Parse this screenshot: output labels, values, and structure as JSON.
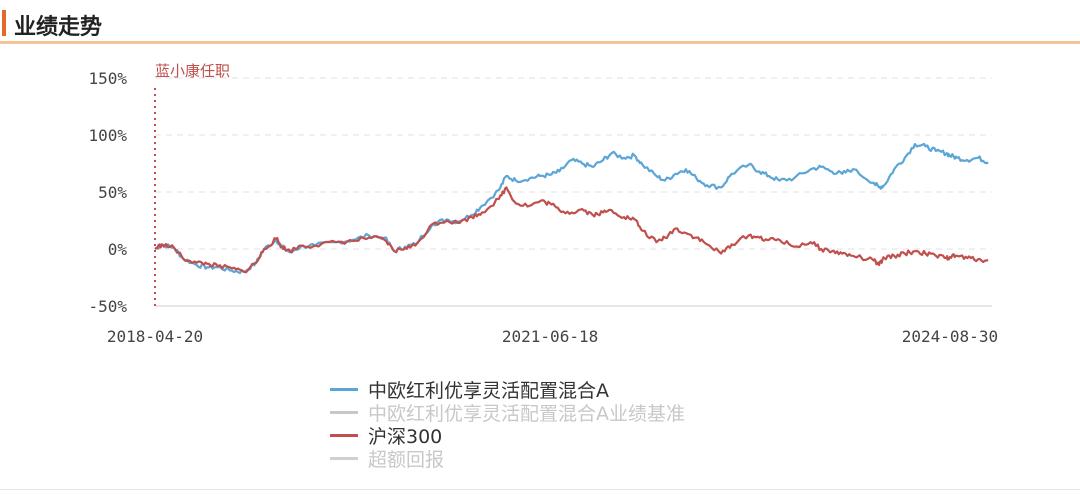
{
  "header": {
    "title": "业绩走势"
  },
  "chart_data": {
    "type": "line",
    "ylim": [
      -50,
      150
    ],
    "y_ticks": [
      "150%",
      "100%",
      "50%",
      "0%",
      "-50%"
    ],
    "y_tick_values": [
      150,
      100,
      50,
      0,
      -50
    ],
    "x_ticks": [
      "2018-04-20",
      "2021-06-18",
      "2024-08-30"
    ],
    "x_tick_dates": [
      "2018-04-20",
      "2021-06-18",
      "2024-08-30"
    ],
    "x_range": [
      "2018-04-20",
      "2024-12-31"
    ],
    "grid": true,
    "annotation": {
      "text": "蓝小康任职",
      "date": "2018-04-20"
    },
    "series": [
      {
        "name": "中欧红利优享灵活配置混合A",
        "color": "#5ba6d6",
        "visible": true,
        "points": [
          [
            "2018-04-20",
            0
          ],
          [
            "2018-05-10",
            4
          ],
          [
            "2018-06-15",
            1
          ],
          [
            "2018-07-10",
            -8
          ],
          [
            "2018-08-20",
            -14
          ],
          [
            "2018-09-20",
            -16
          ],
          [
            "2018-10-20",
            -16
          ],
          [
            "2018-12-01",
            -19
          ],
          [
            "2019-01-05",
            -20
          ],
          [
            "2019-02-10",
            -12
          ],
          [
            "2019-03-05",
            0
          ],
          [
            "2019-04-10",
            8
          ],
          [
            "2019-04-25",
            2
          ],
          [
            "2019-05-20",
            -3
          ],
          [
            "2019-06-20",
            2
          ],
          [
            "2019-08-01",
            3
          ],
          [
            "2019-10-01",
            6
          ],
          [
            "2019-11-20",
            8
          ],
          [
            "2020-01-05",
            12
          ],
          [
            "2020-02-20",
            10
          ],
          [
            "2020-03-20",
            -2
          ],
          [
            "2020-04-20",
            2
          ],
          [
            "2020-05-20",
            4
          ],
          [
            "2020-07-10",
            22
          ],
          [
            "2020-08-20",
            26
          ],
          [
            "2020-09-20",
            24
          ],
          [
            "2020-11-01",
            30
          ],
          [
            "2020-12-01",
            38
          ],
          [
            "2021-01-20",
            52
          ],
          [
            "2021-02-10",
            64
          ],
          [
            "2021-03-10",
            60
          ],
          [
            "2021-04-20",
            62
          ],
          [
            "2021-05-20",
            64
          ],
          [
            "2021-06-18",
            65
          ],
          [
            "2021-07-15",
            68
          ],
          [
            "2021-08-20",
            78
          ],
          [
            "2021-09-20",
            75
          ],
          [
            "2021-10-20",
            72
          ],
          [
            "2021-11-20",
            78
          ],
          [
            "2021-12-15",
            84
          ],
          [
            "2022-01-20",
            80
          ],
          [
            "2022-02-20",
            82
          ],
          [
            "2022-03-15",
            74
          ],
          [
            "2022-04-25",
            64
          ],
          [
            "2022-05-20",
            60
          ],
          [
            "2022-06-20",
            66
          ],
          [
            "2022-07-20",
            70
          ],
          [
            "2022-08-20",
            62
          ],
          [
            "2022-09-20",
            56
          ],
          [
            "2022-10-31",
            54
          ],
          [
            "2022-12-01",
            66
          ],
          [
            "2023-01-20",
            74
          ],
          [
            "2023-02-20",
            68
          ],
          [
            "2023-03-20",
            64
          ],
          [
            "2023-04-20",
            60
          ],
          [
            "2023-06-01",
            62
          ],
          [
            "2023-07-20",
            70
          ],
          [
            "2023-08-20",
            72
          ],
          [
            "2023-09-20",
            68
          ],
          [
            "2023-10-20",
            66
          ],
          [
            "2023-11-20",
            70
          ],
          [
            "2024-01-20",
            58
          ],
          [
            "2024-02-05",
            54
          ],
          [
            "2024-02-20",
            56
          ],
          [
            "2024-03-20",
            70
          ],
          [
            "2024-04-20",
            80
          ],
          [
            "2024-05-20",
            92
          ],
          [
            "2024-06-20",
            90
          ],
          [
            "2024-07-20",
            86
          ],
          [
            "2024-08-20",
            84
          ],
          [
            "2024-08-30",
            82
          ],
          [
            "2024-09-20",
            80
          ],
          [
            "2024-10-20",
            78
          ],
          [
            "2024-11-20",
            80
          ],
          [
            "2024-12-20",
            76
          ]
        ]
      },
      {
        "name": "中欧红利优享灵活配置混合A业绩基准",
        "color": "#c8c8c8",
        "visible": false,
        "points": []
      },
      {
        "name": "沪深300",
        "color": "#c0504d",
        "visible": true,
        "points": [
          [
            "2018-04-20",
            0
          ],
          [
            "2018-05-10",
            4
          ],
          [
            "2018-06-15",
            1
          ],
          [
            "2018-07-10",
            -8
          ],
          [
            "2018-08-20",
            -12
          ],
          [
            "2018-09-20",
            -13
          ],
          [
            "2018-10-20",
            -15
          ],
          [
            "2018-12-01",
            -17
          ],
          [
            "2019-01-05",
            -20
          ],
          [
            "2019-02-10",
            -12
          ],
          [
            "2019-03-05",
            0
          ],
          [
            "2019-04-10",
            9
          ],
          [
            "2019-04-25",
            2
          ],
          [
            "2019-05-20",
            -2
          ],
          [
            "2019-06-20",
            3
          ],
          [
            "2019-08-01",
            3
          ],
          [
            "2019-10-01",
            6
          ],
          [
            "2019-11-20",
            7
          ],
          [
            "2020-01-05",
            10
          ],
          [
            "2020-02-20",
            8
          ],
          [
            "2020-03-20",
            -2
          ],
          [
            "2020-04-20",
            1
          ],
          [
            "2020-05-20",
            3
          ],
          [
            "2020-07-10",
            22
          ],
          [
            "2020-08-20",
            25
          ],
          [
            "2020-09-20",
            23
          ],
          [
            "2020-11-01",
            28
          ],
          [
            "2020-12-01",
            32
          ],
          [
            "2021-01-20",
            44
          ],
          [
            "2021-02-10",
            54
          ],
          [
            "2021-03-10",
            40
          ],
          [
            "2021-04-20",
            38
          ],
          [
            "2021-05-20",
            42
          ],
          [
            "2021-06-18",
            40
          ],
          [
            "2021-07-15",
            34
          ],
          [
            "2021-08-20",
            32
          ],
          [
            "2021-09-20",
            35
          ],
          [
            "2021-10-20",
            30
          ],
          [
            "2021-11-20",
            32
          ],
          [
            "2021-12-15",
            34
          ],
          [
            "2022-01-20",
            28
          ],
          [
            "2022-02-20",
            26
          ],
          [
            "2022-03-15",
            16
          ],
          [
            "2022-04-25",
            6
          ],
          [
            "2022-05-20",
            10
          ],
          [
            "2022-06-20",
            18
          ],
          [
            "2022-07-20",
            14
          ],
          [
            "2022-08-20",
            10
          ],
          [
            "2022-09-20",
            4
          ],
          [
            "2022-10-31",
            -4
          ],
          [
            "2022-12-01",
            4
          ],
          [
            "2023-01-20",
            12
          ],
          [
            "2023-02-20",
            10
          ],
          [
            "2023-03-20",
            8
          ],
          [
            "2023-04-20",
            8
          ],
          [
            "2023-06-01",
            2
          ],
          [
            "2023-07-20",
            6
          ],
          [
            "2023-08-20",
            0
          ],
          [
            "2023-09-20",
            -2
          ],
          [
            "2023-10-20",
            -4
          ],
          [
            "2023-11-20",
            -6
          ],
          [
            "2024-01-20",
            -10
          ],
          [
            "2024-02-05",
            -14
          ],
          [
            "2024-02-20",
            -8
          ],
          [
            "2024-03-20",
            -6
          ],
          [
            "2024-04-20",
            -4
          ],
          [
            "2024-05-20",
            -2
          ],
          [
            "2024-06-20",
            -4
          ],
          [
            "2024-07-20",
            -6
          ],
          [
            "2024-08-20",
            -8
          ],
          [
            "2024-08-30",
            -7
          ],
          [
            "2024-09-20",
            -6
          ],
          [
            "2024-10-20",
            -8
          ],
          [
            "2024-11-20",
            -9
          ],
          [
            "2024-12-20",
            -10
          ]
        ]
      },
      {
        "name": "超额回报",
        "color": "#d0d0d0",
        "visible": false,
        "points": []
      }
    ]
  }
}
